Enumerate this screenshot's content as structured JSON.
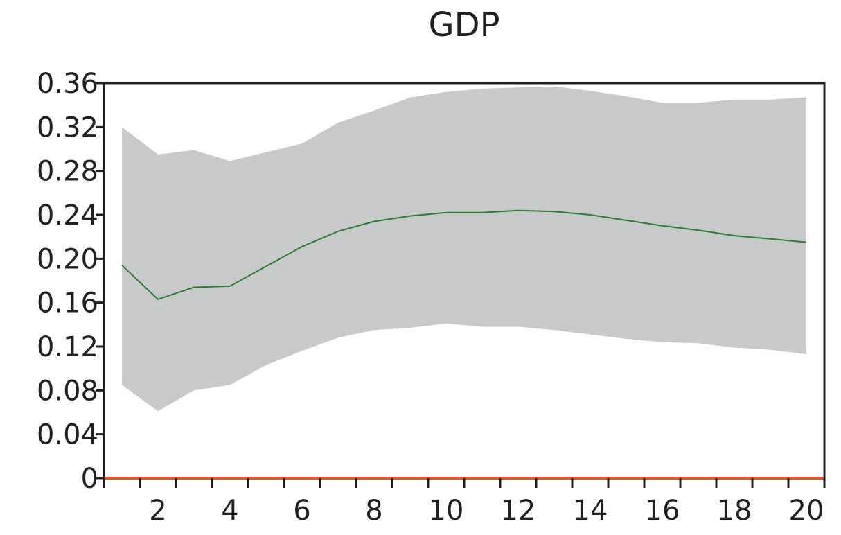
{
  "chart_data": {
    "type": "area",
    "title": "GDP",
    "xlabel": "",
    "ylabel": "",
    "xlim": [
      0.5,
      20.5
    ],
    "ylim": [
      0,
      0.36
    ],
    "x_ticks": [
      1,
      2,
      3,
      4,
      5,
      6,
      7,
      8,
      9,
      10,
      11,
      12,
      13,
      14,
      15,
      16,
      17,
      18,
      19,
      20
    ],
    "x_tick_labels": [
      "2",
      "4",
      "6",
      "8",
      "10",
      "12",
      "14",
      "16",
      "18",
      "20"
    ],
    "x_tick_label_values": [
      2,
      4,
      6,
      8,
      10,
      12,
      14,
      16,
      18,
      20
    ],
    "y_ticks": [
      0,
      0.04,
      0.08,
      0.12,
      0.16,
      0.2,
      0.24,
      0.28,
      0.32,
      0.36
    ],
    "y_tick_labels": [
      "0",
      "0.04",
      "0.08",
      "0.12",
      "0.16",
      "0.20",
      "0.24",
      "0.28",
      "0.32",
      "0.36"
    ],
    "grid": false,
    "legend": "none",
    "x": [
      1,
      2,
      3,
      4,
      5,
      6,
      7,
      8,
      9,
      10,
      11,
      12,
      13,
      14,
      15,
      16,
      17,
      18,
      19,
      20
    ],
    "series": [
      {
        "role": "median",
        "color": "#2e7d32",
        "values": [
          0.194,
          0.163,
          0.174,
          0.175,
          0.193,
          0.211,
          0.225,
          0.234,
          0.239,
          0.242,
          0.242,
          0.244,
          0.243,
          0.24,
          0.235,
          0.23,
          0.226,
          0.221,
          0.218,
          0.215
        ]
      },
      {
        "role": "band-upper",
        "color": "#c8c9cb",
        "values": [
          0.32,
          0.295,
          0.299,
          0.289,
          0.297,
          0.305,
          0.324,
          0.335,
          0.347,
          0.352,
          0.355,
          0.356,
          0.357,
          0.353,
          0.348,
          0.342,
          0.342,
          0.345,
          0.345,
          0.347
        ]
      },
      {
        "role": "band-lower",
        "color": "#c8c9cb",
        "values": [
          0.085,
          0.061,
          0.08,
          0.085,
          0.103,
          0.116,
          0.128,
          0.135,
          0.137,
          0.141,
          0.138,
          0.138,
          0.135,
          0.131,
          0.127,
          0.124,
          0.123,
          0.119,
          0.117,
          0.113
        ]
      },
      {
        "role": "zero-line",
        "color": "#e1562c",
        "values": [
          0,
          0,
          0,
          0,
          0,
          0,
          0,
          0,
          0,
          0,
          0,
          0,
          0,
          0,
          0,
          0,
          0,
          0,
          0,
          0
        ]
      }
    ]
  }
}
